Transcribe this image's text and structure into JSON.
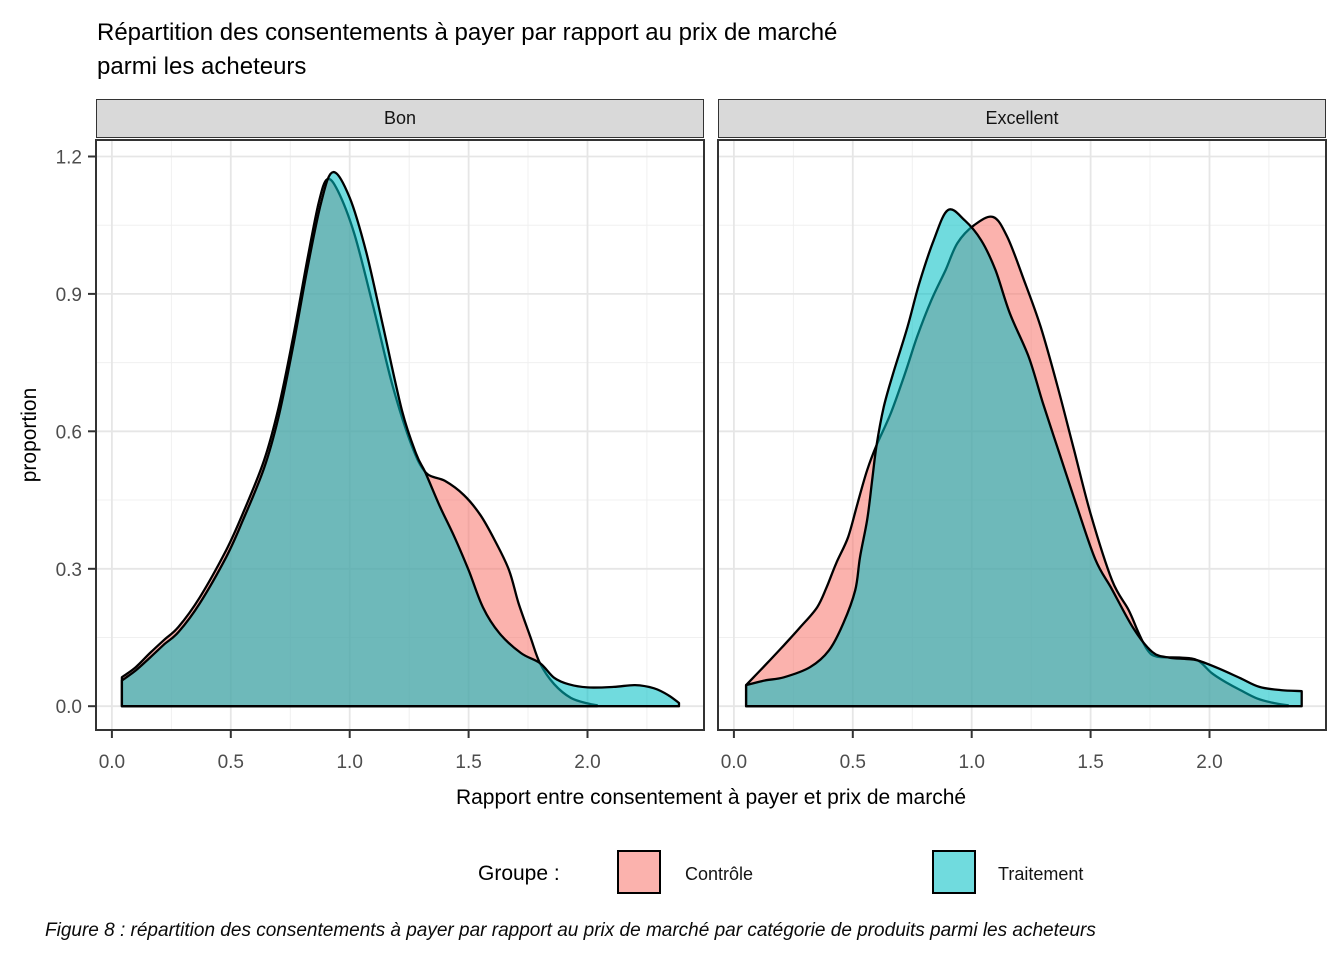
{
  "title": {
    "line1": "Répartition des consentements à payer par rapport au prix de marché",
    "line2": "parmi les acheteurs"
  },
  "caption": {
    "text": "Figure 8 : répartition des consentements à payer par rapport au prix de marché par catégorie de produits parmi les acheteurs"
  },
  "axes": {
    "x_label": "Rapport entre consentement à payer et prix de marché",
    "y_label": "proportion"
  },
  "legend": {
    "title": "Groupe :",
    "entries": [
      {
        "label": "Contrôle",
        "color": "#F8766D"
      },
      {
        "label": "Traitement",
        "color": "#00BFC4"
      }
    ]
  },
  "chart_data": {
    "type": "area",
    "subtype": "density",
    "facets_variable_values": [
      "Bon",
      "Excellent"
    ],
    "x_range": [
      -0.067,
      2.49
    ],
    "y_range": [
      -0.052,
      1.236
    ],
    "x_ticks": [
      0,
      0.5,
      1,
      1.5,
      2
    ],
    "y_ticks": [
      0,
      0.3,
      0.6,
      0.9,
      1.2
    ],
    "x_tick_labels": [
      "0.0",
      "0.5",
      "1.0",
      "1.5",
      "2.0"
    ],
    "y_tick_labels": [
      "0.0",
      "0.3",
      "0.6",
      "0.9",
      "1.2"
    ],
    "x_minor": [
      0.25,
      0.75,
      1.25,
      1.75,
      2.25
    ],
    "y_minor": [
      0.15,
      0.45,
      0.75,
      1.05
    ],
    "grid": true,
    "legend_position": "bottom",
    "fill_alpha": 0.56,
    "stroke_color": "#000000",
    "colors": {
      "controle": "#F8766D",
      "traitement": "#00BFC4"
    },
    "facets": [
      {
        "name": "Bon",
        "series": [
          {
            "name": "Contrôle",
            "key": "controle",
            "points": [
              [
                0.042,
                0.063
              ],
              [
                0.1,
                0.085
              ],
              [
                0.16,
                0.116
              ],
              [
                0.22,
                0.145
              ],
              [
                0.28,
                0.173
              ],
              [
                0.37,
                0.238
              ],
              [
                0.48,
                0.34
              ],
              [
                0.55,
                0.42
              ],
              [
                0.64,
                0.537
              ],
              [
                0.7,
                0.65
              ],
              [
                0.76,
                0.8
              ],
              [
                0.82,
                0.97
              ],
              [
                0.87,
                1.1
              ],
              [
                0.905,
                1.15
              ],
              [
                0.95,
                1.125
              ],
              [
                1.02,
                1.03
              ],
              [
                1.1,
                0.87
              ],
              [
                1.18,
                0.7
              ],
              [
                1.26,
                0.57
              ],
              [
                1.32,
                0.51
              ],
              [
                1.4,
                0.492
              ],
              [
                1.48,
                0.461
              ],
              [
                1.55,
                0.417
              ],
              [
                1.61,
                0.362
              ],
              [
                1.67,
                0.297
              ],
              [
                1.71,
                0.225
              ],
              [
                1.76,
                0.151
              ],
              [
                1.8,
                0.094
              ],
              [
                1.86,
                0.048
              ],
              [
                1.93,
                0.018
              ],
              [
                2.0,
                0.006
              ],
              [
                2.04,
                0.002
              ]
            ]
          },
          {
            "name": "Traitement",
            "key": "traitement",
            "points": [
              [
                0.042,
                0.056
              ],
              [
                0.1,
                0.078
              ],
              [
                0.16,
                0.106
              ],
              [
                0.22,
                0.135
              ],
              [
                0.28,
                0.162
              ],
              [
                0.37,
                0.225
              ],
              [
                0.48,
                0.325
              ],
              [
                0.55,
                0.405
              ],
              [
                0.64,
                0.52
              ],
              [
                0.7,
                0.63
              ],
              [
                0.76,
                0.78
              ],
              [
                0.82,
                0.95
              ],
              [
                0.88,
                1.1
              ],
              [
                0.93,
                1.166
              ],
              [
                1.0,
                1.11
              ],
              [
                1.07,
                0.99
              ],
              [
                1.14,
                0.83
              ],
              [
                1.22,
                0.645
              ],
              [
                1.28,
                0.55
              ],
              [
                1.319,
                0.509
              ],
              [
                1.38,
                0.435
              ],
              [
                1.44,
                0.37
              ],
              [
                1.5,
                0.297
              ],
              [
                1.56,
                0.216
              ],
              [
                1.63,
                0.159
              ],
              [
                1.72,
                0.116
              ],
              [
                1.8,
                0.094
              ],
              [
                1.86,
                0.062
              ],
              [
                1.92,
                0.048
              ],
              [
                2.0,
                0.041
              ],
              [
                2.11,
                0.042
              ],
              [
                2.2,
                0.046
              ],
              [
                2.28,
                0.039
              ],
              [
                2.34,
                0.024
              ],
              [
                2.385,
                0.007
              ]
            ]
          }
        ]
      },
      {
        "name": "Excellent",
        "series": [
          {
            "name": "Contrôle",
            "key": "controle",
            "points": [
              [
                0.051,
                0.046
              ],
              [
                0.14,
                0.094
              ],
              [
                0.21,
                0.133
              ],
              [
                0.28,
                0.173
              ],
              [
                0.35,
                0.216
              ],
              [
                0.39,
                0.26
              ],
              [
                0.43,
                0.312
              ],
              [
                0.48,
                0.369
              ],
              [
                0.52,
                0.443
              ],
              [
                0.56,
                0.515
              ],
              [
                0.6,
                0.57
              ],
              [
                0.66,
                0.64
              ],
              [
                0.72,
                0.727
              ],
              [
                0.77,
                0.806
              ],
              [
                0.83,
                0.886
              ],
              [
                0.89,
                0.952
              ],
              [
                0.94,
                1.011
              ],
              [
                1.01,
                1.05
              ],
              [
                1.09,
                1.068
              ],
              [
                1.15,
                1.024
              ],
              [
                1.22,
                0.93
              ],
              [
                1.29,
                0.828
              ],
              [
                1.36,
                0.7
              ],
              [
                1.43,
                0.56
              ],
              [
                1.5,
                0.42
              ],
              [
                1.59,
                0.275
              ],
              [
                1.66,
                0.21
              ],
              [
                1.7,
                0.162
              ],
              [
                1.74,
                0.122
              ],
              [
                1.78,
                0.108
              ],
              [
                1.88,
                0.106
              ],
              [
                1.95,
                0.1
              ],
              [
                2.01,
                0.072
              ],
              [
                2.07,
                0.052
              ],
              [
                2.13,
                0.035
              ],
              [
                2.2,
                0.017
              ],
              [
                2.27,
                0.007
              ],
              [
                2.33,
                0.002
              ]
            ]
          },
          {
            "name": "Traitement",
            "key": "traitement",
            "points": [
              [
                0.051,
                0.046
              ],
              [
                0.13,
                0.056
              ],
              [
                0.21,
                0.063
              ],
              [
                0.32,
                0.085
              ],
              [
                0.4,
                0.122
              ],
              [
                0.46,
                0.181
              ],
              [
                0.51,
                0.253
              ],
              [
                0.53,
                0.325
              ],
              [
                0.56,
                0.406
              ],
              [
                0.58,
                0.487
              ],
              [
                0.6,
                0.57
              ],
              [
                0.63,
                0.653
              ],
              [
                0.67,
                0.727
              ],
              [
                0.73,
                0.828
              ],
              [
                0.78,
                0.924
              ],
              [
                0.84,
                1.017
              ],
              [
                0.9,
                1.083
              ],
              [
                0.97,
                1.061
              ],
              [
                1.04,
                1.017
              ],
              [
                1.1,
                0.952
              ],
              [
                1.16,
                0.858
              ],
              [
                1.24,
                0.762
              ],
              [
                1.3,
                0.661
              ],
              [
                1.37,
                0.55
              ],
              [
                1.44,
                0.44
              ],
              [
                1.52,
                0.32
              ],
              [
                1.59,
                0.255
              ],
              [
                1.68,
                0.17
              ],
              [
                1.76,
                0.118
              ],
              [
                1.83,
                0.106
              ],
              [
                1.9,
                0.103
              ],
              [
                1.95,
                0.1
              ],
              [
                2.04,
                0.082
              ],
              [
                2.13,
                0.061
              ],
              [
                2.21,
                0.042
              ],
              [
                2.3,
                0.035
              ],
              [
                2.388,
                0.033
              ]
            ]
          }
        ]
      }
    ]
  }
}
